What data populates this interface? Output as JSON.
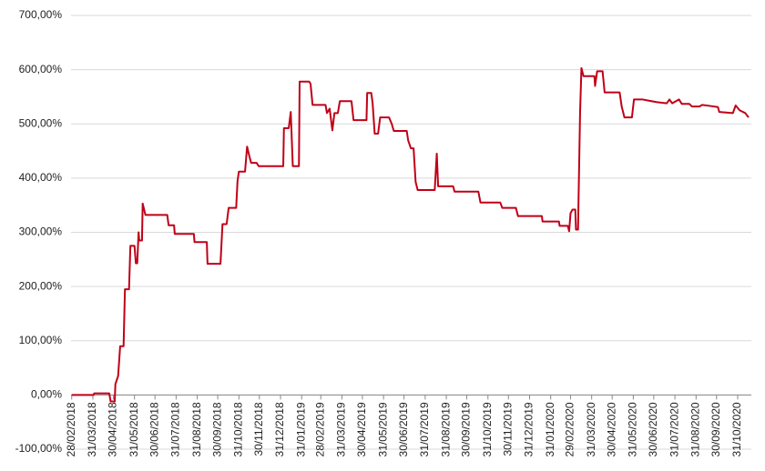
{
  "chart_data": {
    "type": "line",
    "grid": true,
    "xlim": [
      "27/02/2018",
      "20/11/2020"
    ],
    "xticks": [
      "28/02/2018",
      "31/03/2018",
      "30/04/2018",
      "31/05/2018",
      "30/06/2018",
      "31/07/2018",
      "31/08/2018",
      "30/09/2018",
      "31/10/2018",
      "30/11/2018",
      "31/12/2018",
      "31/01/2019",
      "28/02/2019",
      "31/03/2019",
      "30/04/2019",
      "31/05/2019",
      "30/06/2019",
      "31/07/2019",
      "31/08/2019",
      "30/09/2019",
      "31/10/2019",
      "30/11/2019",
      "31/12/2019",
      "31/01/2020",
      "29/02/2020",
      "31/03/2020",
      "30/04/2020",
      "31/05/2020",
      "30/06/2020",
      "31/07/2020",
      "31/08/2020",
      "30/09/2020",
      "31/10/2020"
    ],
    "ylim": [
      -100,
      700
    ],
    "yticks": [
      {
        "value": -100,
        "label": "-100,00%"
      },
      {
        "value": 0,
        "label": "0,00%"
      },
      {
        "value": 100,
        "label": "100,00%"
      },
      {
        "value": 200,
        "label": "200,00%"
      },
      {
        "value": 300,
        "label": "300,00%"
      },
      {
        "value": 400,
        "label": "400,00%"
      },
      {
        "value": 500,
        "label": "500,00%"
      },
      {
        "value": 600,
        "label": "600,00%"
      },
      {
        "value": 700,
        "label": "700,00%"
      }
    ],
    "x": [
      "28/02/2018",
      "01/04/2018",
      "02/04/2018",
      "24/04/2018",
      "26/04/2018",
      "02/05/2018",
      "03/05/2018",
      "07/05/2018",
      "10/05/2018",
      "15/05/2018",
      "17/05/2018",
      "23/05/2018",
      "25/05/2018",
      "31/05/2018",
      "02/06/2018",
      "04/06/2018",
      "06/06/2018",
      "07/06/2018",
      "11/06/2018",
      "12/06/2018",
      "16/06/2018",
      "18/07/2018",
      "20/07/2018",
      "28/07/2018",
      "29/07/2018",
      "26/08/2018",
      "27/08/2018",
      "14/09/2018",
      "15/09/2018",
      "04/10/2018",
      "07/10/2018",
      "13/10/2018",
      "16/10/2018",
      "27/10/2018",
      "29/10/2018",
      "31/10/2018",
      "09/11/2018",
      "12/11/2018",
      "16/11/2018",
      "18/11/2018",
      "26/11/2018",
      "29/11/2018",
      "04/01/2019",
      "05/01/2019",
      "12/01/2019",
      "15/01/2019",
      "18/01/2019",
      "27/01/2019",
      "28/01/2019",
      "11/02/2019",
      "13/02/2019",
      "16/02/2019",
      "07/03/2019",
      "09/03/2019",
      "13/03/2019",
      "17/03/2019",
      "20/03/2019",
      "25/03/2019",
      "28/03/2019",
      "14/04/2019",
      "17/04/2019",
      "06/05/2019",
      "07/05/2019",
      "13/05/2019",
      "15/05/2019",
      "18/05/2019",
      "23/05/2019",
      "26/05/2019",
      "08/06/2019",
      "12/06/2019",
      "15/06/2019",
      "04/07/2019",
      "06/07/2019",
      "10/07/2019",
      "14/07/2019",
      "17/07/2019",
      "20/07/2019",
      "14/08/2019",
      "17/08/2019",
      "19/08/2019",
      "10/09/2019",
      "12/09/2019",
      "17/10/2019",
      "20/10/2019",
      "18/11/2019",
      "21/11/2019",
      "11/12/2019",
      "14/12/2019",
      "18/01/2020",
      "19/01/2020",
      "12/02/2020",
      "13/02/2020",
      "25/02/2020",
      "27/02/2020",
      "29/02/2020",
      "03/03/2020",
      "07/03/2020",
      "08/03/2020",
      "11/03/2020",
      "14/03/2020",
      "16/03/2020",
      "19/03/2020",
      "04/04/2020",
      "05/04/2020",
      "08/04/2020",
      "16/04/2020",
      "19/04/2020",
      "11/05/2020",
      "14/05/2020",
      "18/05/2020",
      "29/05/2020",
      "01/06/2020",
      "14/06/2020",
      "22/06/2020",
      "05/07/2020",
      "19/07/2020",
      "23/07/2020",
      "27/07/2020",
      "06/08/2020",
      "10/08/2020",
      "21/08/2020",
      "25/08/2020",
      "05/09/2020",
      "09/09/2020",
      "21/09/2020",
      "02/10/2020",
      "04/10/2020",
      "24/10/2020",
      "28/10/2020",
      "03/11/2020",
      "11/11/2020",
      "16/11/2020"
    ],
    "series": [
      {
        "color": "#c00018",
        "values": [
          0,
          0,
          3,
          3,
          -12,
          -12,
          20,
          35,
          90,
          90,
          195,
          195,
          275,
          275,
          243,
          243,
          300,
          285,
          285,
          353,
          332,
          332,
          313,
          313,
          297,
          297,
          282,
          282,
          242,
          242,
          315,
          315,
          345,
          345,
          395,
          412,
          412,
          458,
          437,
          428,
          428,
          422,
          422,
          492,
          492,
          522,
          422,
          422,
          578,
          578,
          574,
          535,
          535,
          520,
          528,
          488,
          520,
          520,
          542,
          542,
          507,
          507,
          557,
          557,
          538,
          482,
          482,
          512,
          512,
          500,
          487,
          487,
          470,
          455,
          455,
          393,
          378,
          378,
          445,
          385,
          385,
          375,
          375,
          355,
          355,
          345,
          345,
          330,
          330,
          320,
          320,
          312,
          312,
          302,
          335,
          342,
          342,
          305,
          305,
          520,
          603,
          588,
          588,
          570,
          597,
          597,
          558,
          558,
          532,
          512,
          512,
          545,
          545,
          543,
          540,
          538,
          545,
          538,
          545,
          537,
          537,
          532,
          532,
          535,
          533,
          531,
          522,
          520,
          534,
          525,
          520,
          512
        ]
      }
    ]
  }
}
